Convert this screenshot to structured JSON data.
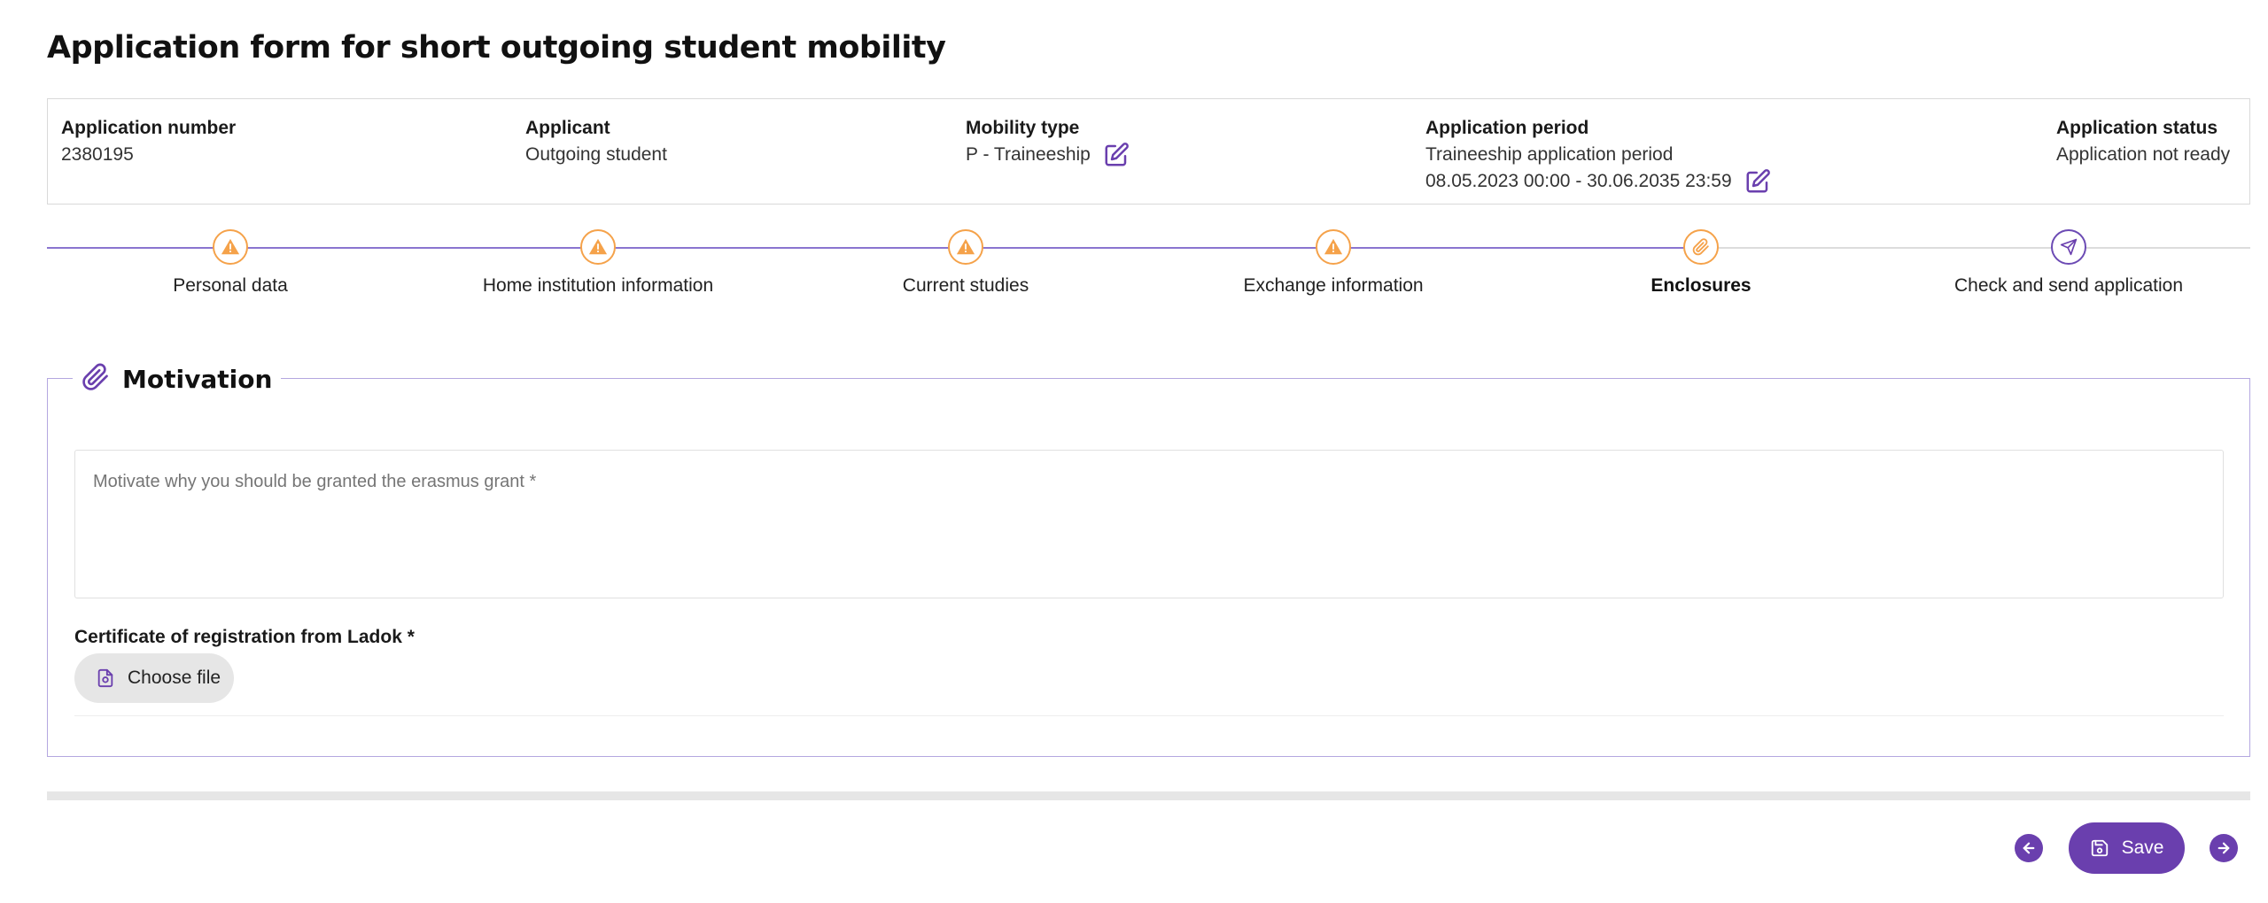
{
  "page": {
    "title": "Application form for short outgoing student mobility"
  },
  "colors": {
    "accent": "#6a3fae",
    "warning": "#f5a24a",
    "border_light": "#d9d9d9",
    "fieldset_border": "#b4a7e0"
  },
  "info": {
    "application_number": {
      "label": "Application number",
      "value": "2380195"
    },
    "applicant": {
      "label": "Applicant",
      "value": "Outgoing student"
    },
    "mobility_type": {
      "label": "Mobility type",
      "value": "P - Traineeship",
      "icon": "edit-icon"
    },
    "application_period": {
      "label": "Application period",
      "value": "Traineeship application period",
      "dates": "08.05.2023 00:00 - 30.06.2035 23:59",
      "icon": "edit-icon"
    },
    "application_status": {
      "label": "Application status",
      "value": "Application not ready"
    }
  },
  "steps": [
    {
      "label": "Personal data",
      "icon": "warning-icon",
      "state": "warning"
    },
    {
      "label": "Home institution information",
      "icon": "warning-icon",
      "state": "warning"
    },
    {
      "label": "Current studies",
      "icon": "warning-icon",
      "state": "warning"
    },
    {
      "label": "Exchange information",
      "icon": "warning-icon",
      "state": "warning"
    },
    {
      "label": "Enclosures",
      "icon": "paperclip-icon",
      "state": "active"
    },
    {
      "label": "Check and send application",
      "icon": "send-icon",
      "state": "pending"
    }
  ],
  "motivation": {
    "title": "Motivation",
    "icon": "paperclip-icon",
    "textarea_placeholder": "Motivate why you should be granted the erasmus grant *",
    "certificate_label": "Certificate of registration from Ladok *",
    "choose_file_label": "Choose file"
  },
  "footer": {
    "save_label": "Save",
    "prev_icon": "arrow-left-icon",
    "next_icon": "arrow-right-icon"
  }
}
